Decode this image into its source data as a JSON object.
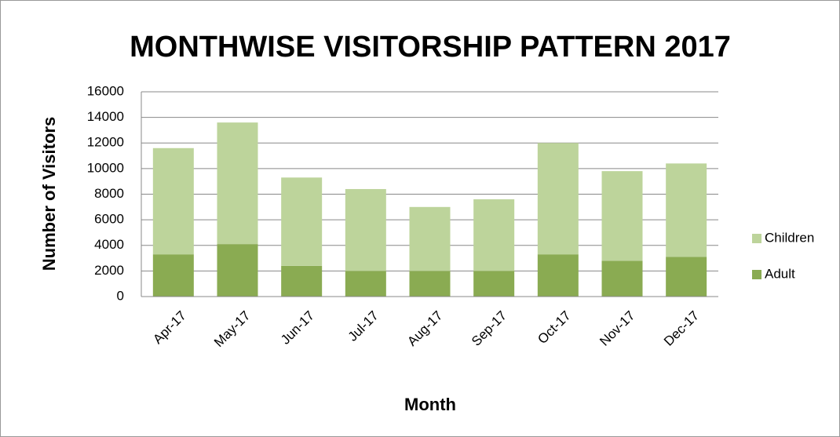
{
  "chart_data": {
    "type": "stacked_bar",
    "title": "MONTHWISE VISITORSHIP PATTERN 2017",
    "x_label": "Month",
    "y_label": "Number of Visitors",
    "categories": [
      "Apr-17",
      "May-17",
      "Jun-17",
      "Jul-17",
      "Aug-17",
      "Sep-17",
      "Oct-17",
      "Nov-17",
      "Dec-17"
    ],
    "series": [
      {
        "name": "Adult",
        "color": "#8aab52",
        "values": [
          3300,
          4100,
          2400,
          2000,
          2000,
          2000,
          3300,
          2800,
          3100
        ]
      },
      {
        "name": "Children",
        "color": "#bdd49b",
        "values": [
          8300,
          9500,
          6900,
          6400,
          5000,
          5600,
          8700,
          7000,
          7300
        ]
      }
    ],
    "ylim": [
      0,
      16000
    ],
    "yticks": [
      0,
      2000,
      4000,
      6000,
      8000,
      10000,
      12000,
      14000,
      16000
    ],
    "grid": true,
    "legend": "right"
  }
}
